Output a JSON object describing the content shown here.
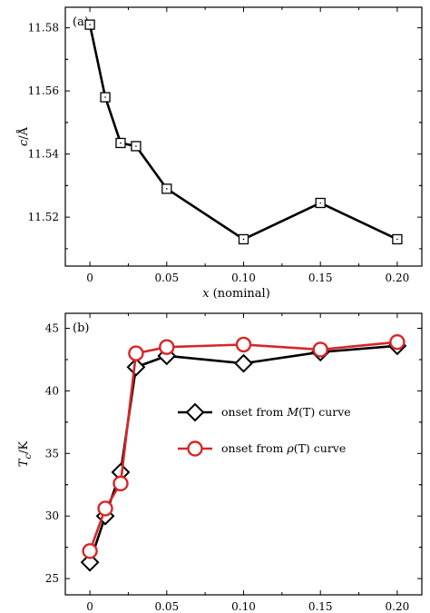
{
  "chart_data": [
    {
      "type": "line",
      "panel_label": "(a)",
      "xlabel_var": "x",
      "xlabel_rest": " (nominal)",
      "ylabel_var": "c",
      "ylabel_rest": "/Å",
      "x_ticks": [
        "0",
        "0.05",
        "0.10",
        "0.15",
        "0.20"
      ],
      "y_ticks": [
        "11.52",
        "11.54",
        "11.56",
        "11.58"
      ],
      "xlim": [
        -0.016,
        0.216
      ],
      "ylim": [
        11.5045,
        11.5865
      ],
      "grid": false,
      "series": [
        {
          "marker": "square",
          "color": "#000000",
          "x": [
            0.0,
            0.01,
            0.02,
            0.03,
            0.05,
            0.1,
            0.15,
            0.2
          ],
          "y": [
            11.581,
            11.558,
            11.5435,
            11.5425,
            11.529,
            11.513,
            11.5245,
            11.513
          ]
        }
      ]
    },
    {
      "type": "line",
      "panel_label": "(b)",
      "xlabel_var": "x",
      "xlabel_rest": " (nominal)",
      "ylabel_var": "T",
      "ylabel_sub": "c",
      "ylabel_rest": "/K",
      "x_ticks": [
        "0",
        "0.05",
        "0.10",
        "0.15",
        "0.20"
      ],
      "y_ticks": [
        "25",
        "30",
        "35",
        "40",
        "45"
      ],
      "xlim": [
        -0.016,
        0.216
      ],
      "ylim": [
        23.7,
        46.2
      ],
      "grid": false,
      "legend_position": "right",
      "series": [
        {
          "name_pre": "onset from ",
          "name_var": "M",
          "name_post": "(T) curve",
          "marker": "diamond",
          "color": "#000000",
          "x": [
            0.0,
            0.01,
            0.02,
            0.03,
            0.05,
            0.1,
            0.15,
            0.2
          ],
          "y": [
            26.3,
            30.0,
            33.5,
            41.9,
            42.8,
            42.2,
            43.1,
            43.6
          ]
        },
        {
          "name_pre": "onset from ",
          "name_var": "ρ",
          "name_post": "(T) curve",
          "marker": "circle",
          "color": "#d62728",
          "x": [
            0.0,
            0.01,
            0.02,
            0.03,
            0.05,
            0.1,
            0.15,
            0.2
          ],
          "y": [
            27.2,
            30.6,
            32.6,
            43.0,
            43.5,
            43.7,
            43.3,
            43.9
          ]
        }
      ]
    }
  ]
}
